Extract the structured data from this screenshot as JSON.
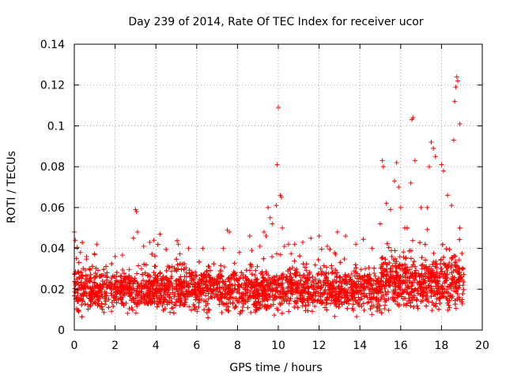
{
  "chart_data": {
    "type": "scatter",
    "title": "Day 239 of 2014, Rate Of TEC Index for receiver ucor",
    "xlabel": "GPS time / hours",
    "ylabel": "ROTI / TECUs",
    "xlim": [
      0,
      20
    ],
    "ylim": [
      0,
      0.14
    ],
    "xticks": [
      0,
      2,
      4,
      6,
      8,
      10,
      12,
      14,
      16,
      18,
      20
    ],
    "yticks": [
      0,
      0.02,
      0.04,
      0.06,
      0.08,
      0.1,
      0.12,
      0.14
    ],
    "xtick_labels": [
      "0",
      "2",
      "4",
      "6",
      "8",
      "10",
      "12",
      "14",
      "16",
      "18",
      "20"
    ],
    "ytick_labels": [
      "0",
      "0.02",
      "0.04",
      "0.06",
      "0.08",
      "0.1",
      "0.12",
      "0.14"
    ],
    "grid": true,
    "marker": "+",
    "color": "#ff0000",
    "series": [
      {
        "name": "ROTI",
        "time_range_hours": [
          0,
          19.1
        ],
        "typical_range": [
          0.005,
          0.035
        ],
        "x": [
          0.0,
          0.05,
          0.1,
          0.3,
          0.6,
          1.0,
          1.1,
          2.0,
          2.9,
          3.0,
          3.05,
          3.1,
          3.4,
          3.7,
          3.9,
          4.2,
          5.1,
          5.6,
          6.3,
          7.3,
          7.5,
          7.6,
          8.1,
          8.6,
          8.7,
          9.1,
          9.3,
          9.4,
          9.5,
          9.6,
          9.7,
          9.9,
          9.95,
          10.0,
          10.1,
          10.15,
          10.2,
          10.3,
          10.5,
          10.8,
          11.2,
          11.6,
          12.0,
          12.4,
          12.9,
          13.3,
          13.8,
          14.6,
          15.0,
          15.1,
          15.15,
          15.3,
          15.5,
          15.7,
          15.8,
          15.9,
          16.0,
          16.2,
          16.5,
          16.55,
          16.6,
          16.7,
          17.0,
          17.3,
          17.4,
          17.5,
          17.6,
          17.7,
          18.0,
          18.1,
          18.3,
          18.5,
          18.6,
          18.65,
          18.7,
          18.75,
          18.8,
          18.9
        ],
        "y": [
          0.048,
          0.044,
          0.035,
          0.038,
          0.036,
          0.037,
          0.042,
          0.036,
          0.045,
          0.059,
          0.058,
          0.048,
          0.041,
          0.043,
          0.044,
          0.047,
          0.042,
          0.04,
          0.04,
          0.04,
          0.049,
          0.048,
          0.038,
          0.046,
          0.039,
          0.041,
          0.048,
          0.046,
          0.06,
          0.055,
          0.052,
          0.061,
          0.081,
          0.109,
          0.066,
          0.065,
          0.05,
          0.041,
          0.042,
          0.042,
          0.043,
          0.045,
          0.046,
          0.041,
          0.048,
          0.046,
          0.042,
          0.04,
          0.052,
          0.083,
          0.08,
          0.062,
          0.059,
          0.073,
          0.082,
          0.07,
          0.06,
          0.05,
          0.072,
          0.103,
          0.104,
          0.083,
          0.06,
          0.06,
          0.08,
          0.092,
          0.089,
          0.085,
          0.081,
          0.078,
          0.066,
          0.061,
          0.093,
          0.112,
          0.119,
          0.124,
          0.122,
          0.101
        ]
      }
    ]
  }
}
